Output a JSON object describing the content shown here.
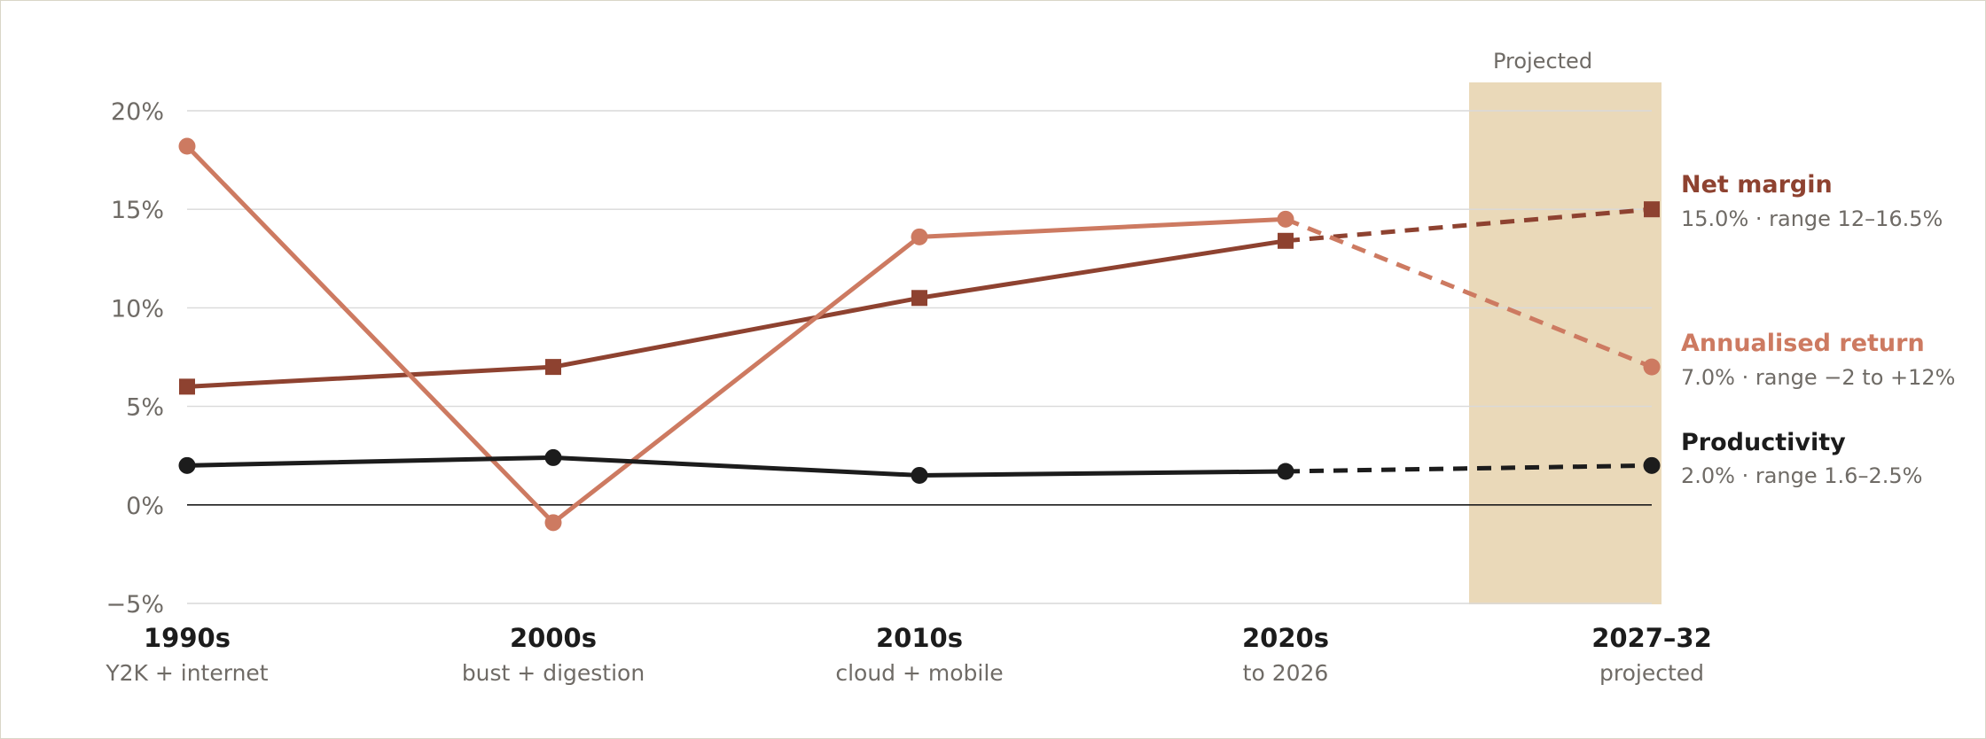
{
  "chart_data": {
    "type": "line",
    "categories": [
      {
        "label": "1990s",
        "sublabel": "Y2K + internet"
      },
      {
        "label": "2000s",
        "sublabel": "bust + digestion"
      },
      {
        "label": "2010s",
        "sublabel": "cloud + mobile"
      },
      {
        "label": "2020s",
        "sublabel": "to 2026"
      },
      {
        "label": "2027–32",
        "sublabel": "projected"
      }
    ],
    "ylim": [
      -5,
      20
    ],
    "yticks": [
      -5,
      0,
      5,
      10,
      15,
      20
    ],
    "ytick_labels": [
      "−5%",
      "0%",
      "5%",
      "10%",
      "15%",
      "20%"
    ],
    "projected_band_label": "Projected",
    "projected_from_index": 3,
    "series": [
      {
        "name": "Net margin",
        "summary": "15.0% · range 12–16.5%",
        "color": "#8e4230",
        "marker": "square",
        "values": [
          6.0,
          7.0,
          10.5,
          13.4,
          15.0
        ]
      },
      {
        "name": "Annualised return",
        "summary": "7.0% · range −2 to +12%",
        "color": "#cd7a61",
        "marker": "circle",
        "values": [
          18.2,
          -0.9,
          13.6,
          14.5,
          7.0
        ]
      },
      {
        "name": "Productivity",
        "summary": "2.0% · range 1.6–2.5%",
        "color": "#1c1c1c",
        "marker": "circle",
        "values": [
          2.0,
          2.4,
          1.5,
          1.7,
          2.0
        ]
      }
    ],
    "colors": {
      "band": "#ead9b9",
      "grid": "#d9d9d9",
      "zero_line": "#1c1c1c"
    }
  }
}
